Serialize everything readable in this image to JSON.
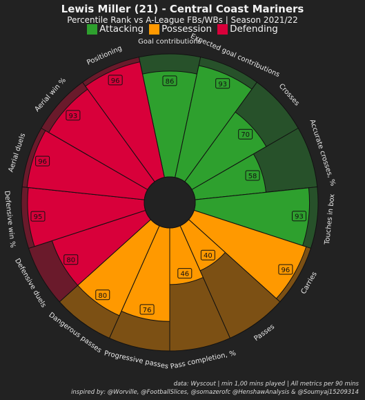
{
  "title": "Lewis Miller (21) - Central Coast Mariners",
  "subtitle": "Percentile Rank vs A-League FBs/WBs | Season 2021/22",
  "legend": [
    {
      "label": "Attacking",
      "color": "#2ea02e"
    },
    {
      "label": "Possession",
      "color": "#ff9900"
    },
    {
      "label": "Defending",
      "color": "#d8003a"
    }
  ],
  "colors": {
    "background": "#222222",
    "attacking": "#2ea02e",
    "attacking_bg": "#27512a",
    "possession": "#ff9900",
    "possession_bg": "#7c5014",
    "defending": "#d8003a",
    "defending_bg": "#6a1a2b"
  },
  "chart_data": {
    "type": "radial_bar",
    "range": [
      0,
      100
    ],
    "categories": [
      "Goal contributions",
      "Expected goal contributions",
      "Crosses",
      "Accurate crosses, %",
      "Touches in box",
      "Carries",
      "Passes",
      "Pass completion, %",
      "Progressive passes",
      "Dangerous passes",
      "Defensive duels",
      "Defensive win %",
      "Aerial duels",
      "Aerial win %",
      "Positioning"
    ],
    "groups": [
      "Attacking",
      "Attacking",
      "Attacking",
      "Attacking",
      "Attacking",
      "Possession",
      "Possession",
      "Possession",
      "Possession",
      "Possession",
      "Defending",
      "Defending",
      "Defending",
      "Defending",
      "Defending"
    ],
    "values": [
      86,
      93,
      70,
      58,
      93,
      96,
      40,
      46,
      76,
      80,
      80,
      95,
      96,
      93,
      96
    ]
  },
  "footer": {
    "line1": "data: Wyscout | min 1,00 mins played | All metrics per 90 mins",
    "line2": "inspired by: @Worville, @FootballSlices, @somazerofc @HenshawAnalysis & @Soumyaj15209314"
  }
}
